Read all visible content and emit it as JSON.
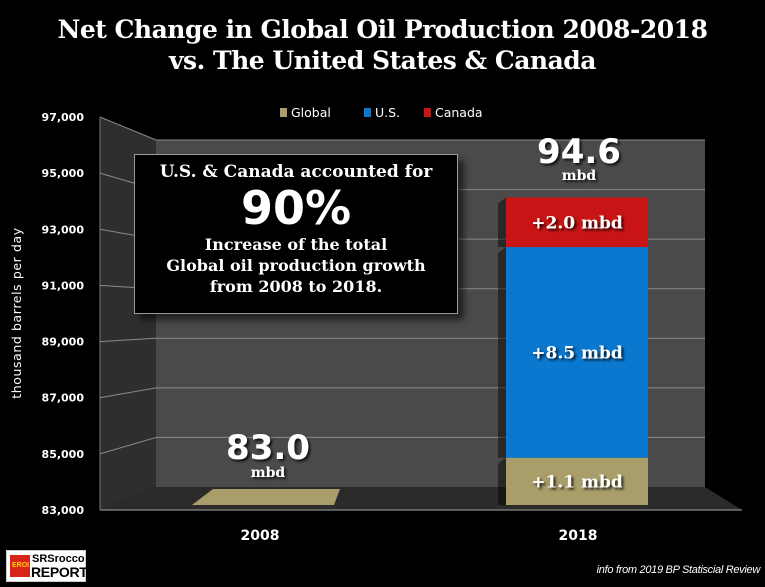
{
  "chart_data": {
    "type": "bar",
    "stacked": true,
    "three_d": true,
    "title": "Net Change in Global Oil Production 2008-2018\nvs. The United States & Canada",
    "title_lines": [
      "Net Change in Global Oil Production 2008-2018",
      "vs. The United States & Canada"
    ],
    "xlabel": "",
    "ylabel": "thousand  barrels  per  day",
    "ylim": [
      83000,
      97000
    ],
    "yticks": [
      83000,
      85000,
      87000,
      89000,
      91000,
      93000,
      95000,
      97000
    ],
    "ytick_labels": [
      "83,000",
      "85,000",
      "87,000",
      "89,000",
      "91,000",
      "93,000",
      "95,000",
      "97,000"
    ],
    "grid": true,
    "legend_position": "top-center",
    "categories": [
      "2008",
      "2018"
    ],
    "series": [
      {
        "name": "Global",
        "color": "#a99e6a",
        "values": [
          83000,
          84100
        ],
        "segment_label": "+1.1 mbd"
      },
      {
        "name": "U.S.",
        "color": "#0a78cf",
        "values": [
          0,
          8500
        ],
        "segment_label": "+8.5 mbd"
      },
      {
        "name": "Canada",
        "color": "#c81414",
        "values": [
          0,
          2000
        ],
        "segment_label": "+2.0 mbd"
      }
    ],
    "totals": [
      {
        "category": "2008",
        "value": "83.0",
        "unit": "mbd"
      },
      {
        "category": "2018",
        "value": "94.6",
        "unit": "mbd"
      }
    ],
    "annotation": {
      "line1": "U.S. & Canada accounted for",
      "percent": "90%",
      "line3": "Increase of the total",
      "line4": "Global oil production growth",
      "line5": "from 2008 to 2018."
    }
  },
  "footer": {
    "source": "info from 2019 BP Statiscial Review",
    "logo_line1": "SRSrocco",
    "logo_line2": "REPORT",
    "logo_badge": "EROI"
  }
}
